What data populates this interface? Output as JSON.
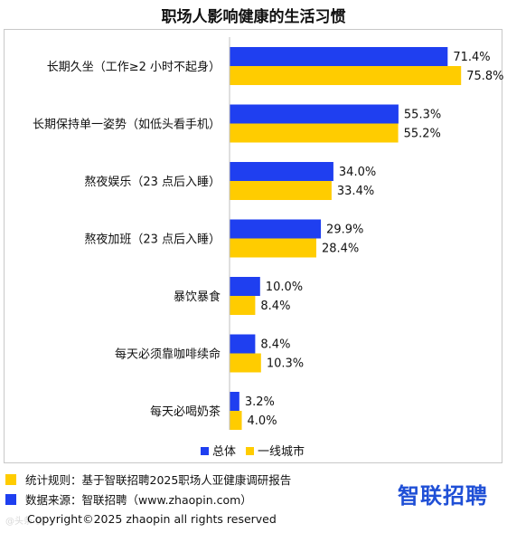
{
  "chart_data": {
    "type": "bar",
    "title": "职场人影响健康的生活习惯",
    "orientation": "horizontal",
    "categories": [
      "长期久坐（工作≥2 小时不起身）",
      "长期保持单一姿势（如低头看手机）",
      "熬夜娱乐（23 点后入睡）",
      "熬夜加班（23 点后入睡）",
      "暴饮暴食",
      "每天必须靠咖啡续命",
      "每天必喝奶茶"
    ],
    "series": [
      {
        "name": "总体",
        "color": "#1f3ff0",
        "values": [
          71.4,
          55.3,
          34.0,
          29.9,
          10.0,
          8.4,
          3.2
        ],
        "labels": [
          "71.4%",
          "55.3%",
          "34.0%",
          "29.9%",
          "10.0%",
          "8.4%",
          "3.2%"
        ]
      },
      {
        "name": "一线城市",
        "color": "#ffcc00",
        "values": [
          75.8,
          55.2,
          33.4,
          28.4,
          8.4,
          10.3,
          4.0
        ],
        "labels": [
          "75.8%",
          "55.2%",
          "33.4%",
          "28.4%",
          "8.4%",
          "10.3%",
          "4.0%"
        ]
      }
    ],
    "xlim": [
      0,
      100
    ],
    "grid": false,
    "legend_position": "bottom"
  },
  "footer": {
    "rule": "统计规则：基于智联招聘2025职场人亚健康调研报告",
    "source": "数据来源：智联招聘（www.zhaopin.com）",
    "brand": "智联招聘",
    "copyright": "Copyright©2025 zhaopin all rights reserved",
    "watermark": "@头条·优"
  }
}
